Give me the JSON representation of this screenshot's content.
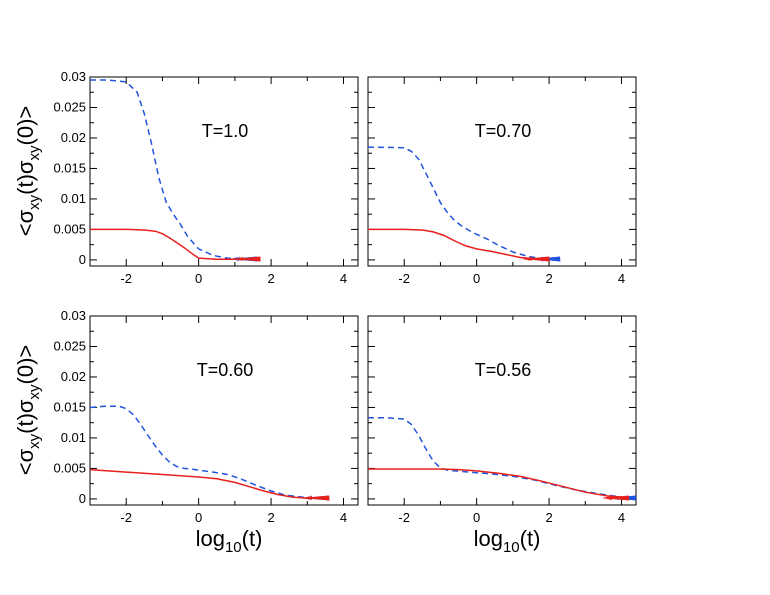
{
  "chart_data": {
    "type": "line",
    "layout": "2x2",
    "ylabel": "<σxy(t)σxy(0)>",
    "ylabel_parts": {
      "open": "<σ",
      "sub1": "xy",
      "mid": "(t)σ",
      "sub2": "xy",
      "close": "(0)>"
    },
    "xlabel": "log10(t)",
    "xlabel_parts": {
      "base": "log",
      "sub": "10",
      "rest": "(t)"
    },
    "xlim": [
      -3,
      4.4
    ],
    "ylim": [
      -0.001,
      0.03
    ],
    "x_ticks": [
      -2,
      0,
      2,
      4
    ],
    "x_tick_labels": [
      "-2",
      "0",
      "2",
      "4"
    ],
    "y_ticks": [
      0,
      0.005,
      0.01,
      0.015,
      0.02,
      0.025,
      0.03
    ],
    "y_tick_labels": [
      "0",
      "0.005",
      "0.01",
      "0.015",
      "0.02",
      "0.025",
      "0.03"
    ],
    "series_styles": {
      "dashed": {
        "color": "#2255dd",
        "dash": "dashed"
      },
      "solid": {
        "color": "#e8201c",
        "dash": "solid"
      }
    },
    "panels": [
      {
        "label": "T=1.0",
        "dashed": {
          "x": [
            -3,
            -2.5,
            -2,
            -1.7,
            -1.5,
            -1.3,
            -1.1,
            -0.9,
            -0.7,
            -0.5,
            -0.3,
            0,
            0.3,
            0.5,
            0.8,
            1.2,
            1.6
          ],
          "y": [
            0.0295,
            0.0295,
            0.0292,
            0.0275,
            0.024,
            0.019,
            0.0135,
            0.0095,
            0.0075,
            0.0058,
            0.0038,
            0.0018,
            0.001,
            0.0006,
            0.0003,
            0.0002,
            0.0001
          ]
        },
        "solid": {
          "x": [
            -3,
            -2,
            -1.5,
            -1.2,
            -1,
            -0.8,
            -0.6,
            -0.4,
            -0.2,
            0,
            0.5,
            1.7
          ],
          "y": [
            0.005,
            0.005,
            0.0049,
            0.0047,
            0.0043,
            0.0036,
            0.0028,
            0.002,
            0.0011,
            0.0003,
            0.0001,
            0.0001
          ]
        }
      },
      {
        "label": "T=0.70",
        "dashed": {
          "x": [
            -3,
            -2,
            -1.8,
            -1.6,
            -1.4,
            -1.2,
            -1,
            -0.8,
            -0.6,
            -0.4,
            -0.2,
            0,
            0.3,
            0.6,
            1,
            1.4,
            1.8,
            2.3
          ],
          "y": [
            0.0185,
            0.0184,
            0.0178,
            0.0165,
            0.0142,
            0.0118,
            0.0094,
            0.0077,
            0.0064,
            0.0055,
            0.0048,
            0.0042,
            0.0034,
            0.0024,
            0.0013,
            0.0006,
            0.0002,
            0.0001
          ]
        },
        "solid": {
          "x": [
            -3,
            -2,
            -1.5,
            -1.2,
            -0.9,
            -0.6,
            -0.3,
            0,
            0.4,
            0.8,
            1.2,
            1.6,
            2
          ],
          "y": [
            0.005,
            0.005,
            0.0049,
            0.0046,
            0.004,
            0.0031,
            0.0023,
            0.0018,
            0.0014,
            0.0009,
            0.0004,
            0.0002,
            0.0001
          ]
        }
      },
      {
        "label": "T=0.60",
        "dashed": {
          "x": [
            -3,
            -2.6,
            -2.2,
            -2,
            -1.8,
            -1.6,
            -1.4,
            -1.2,
            -1,
            -0.8,
            -0.6,
            -0.4,
            -0.2,
            0,
            0.4,
            0.8,
            1.2,
            1.6,
            2,
            2.4,
            3,
            3.6
          ],
          "y": [
            0.015,
            0.0152,
            0.0152,
            0.0148,
            0.0138,
            0.0122,
            0.0104,
            0.0087,
            0.0072,
            0.006,
            0.0053,
            0.005,
            0.0049,
            0.0047,
            0.0044,
            0.004,
            0.0032,
            0.0022,
            0.0013,
            0.0006,
            0.0002,
            0.0001
          ]
        },
        "solid": {
          "x": [
            -3,
            -2,
            -1,
            0,
            0.5,
            1,
            1.4,
            1.8,
            2.2,
            2.6,
            3,
            3.6
          ],
          "y": [
            0.0048,
            0.0044,
            0.004,
            0.0036,
            0.0033,
            0.0027,
            0.002,
            0.0013,
            0.0007,
            0.0003,
            0.0001,
            0.0001
          ]
        }
      },
      {
        "label": "T=0.56",
        "dashed": {
          "x": [
            -3,
            -2.5,
            -2,
            -1.8,
            -1.6,
            -1.4,
            -1.2,
            -1,
            -0.8,
            -0.6,
            -0.2,
            0.4,
            1,
            1.6,
            2.2,
            2.8,
            3.4,
            4,
            4.4
          ],
          "y": [
            0.0133,
            0.0133,
            0.0131,
            0.0122,
            0.0104,
            0.0082,
            0.0062,
            0.0051,
            0.0047,
            0.0046,
            0.0044,
            0.0041,
            0.0037,
            0.0031,
            0.0022,
            0.0014,
            0.0008,
            0.0003,
            0.0001
          ]
        },
        "solid": {
          "x": [
            -3,
            -2,
            -1,
            -0.5,
            0,
            0.6,
            1.2,
            1.8,
            2.4,
            3,
            3.6,
            4.2
          ],
          "y": [
            0.0049,
            0.0049,
            0.0049,
            0.0048,
            0.0046,
            0.0042,
            0.0037,
            0.0029,
            0.002,
            0.0011,
            0.0005,
            0.0002
          ]
        }
      }
    ]
  }
}
